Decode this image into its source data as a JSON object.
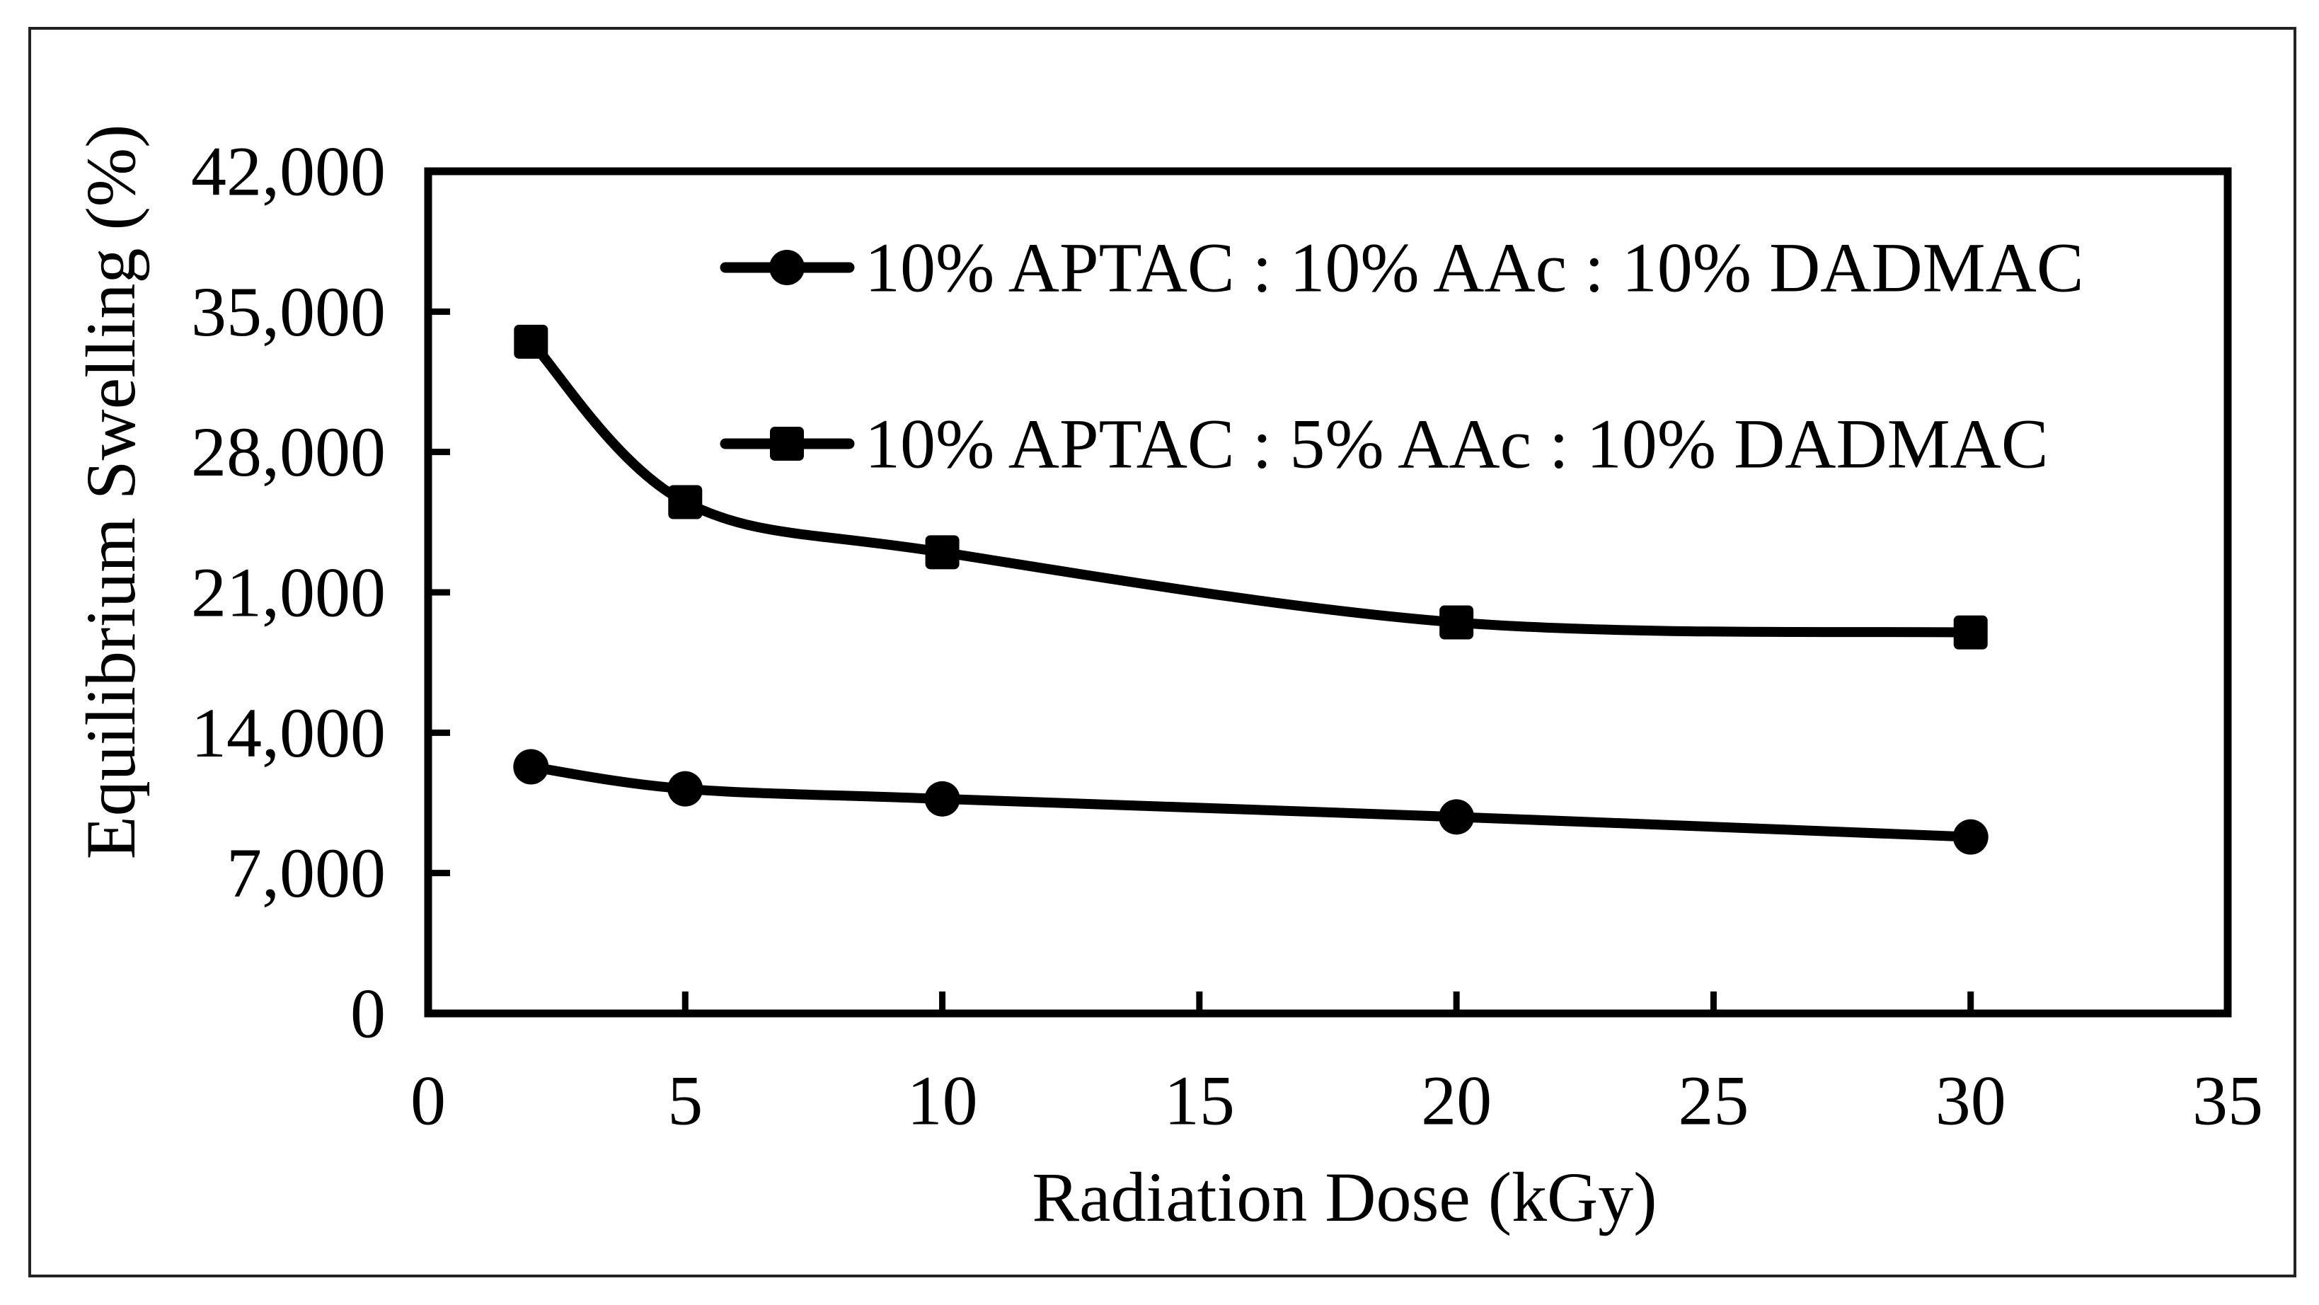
{
  "chart_data": {
    "type": "line",
    "title": "",
    "x": [
      2,
      5,
      10,
      20,
      30
    ],
    "series": [
      {
        "name": "10% APTAC : 10% AAc : 10% DADMAC",
        "marker": "circle",
        "values": [
          12300,
          11200,
          10700,
          9800,
          8800
        ]
      },
      {
        "name": "10% APTAC : 5% AAc : 10% DADMAC",
        "marker": "square",
        "values": [
          33500,
          25500,
          23000,
          19500,
          19000
        ]
      }
    ],
    "xlabel": "Radiation Dose (kGy)",
    "ylabel": "Equilibrium Swelling (%)",
    "xlim": [
      0,
      35
    ],
    "ylim": [
      0,
      42000
    ],
    "xticks": [
      0,
      5,
      10,
      15,
      20,
      25,
      30,
      35
    ],
    "yticks": [
      0,
      7000,
      14000,
      21000,
      28000,
      35000,
      42000
    ],
    "grid": false,
    "smooth": true,
    "legend_position": "top-inside",
    "line_color": "#000000",
    "frame_color": "#232323"
  }
}
